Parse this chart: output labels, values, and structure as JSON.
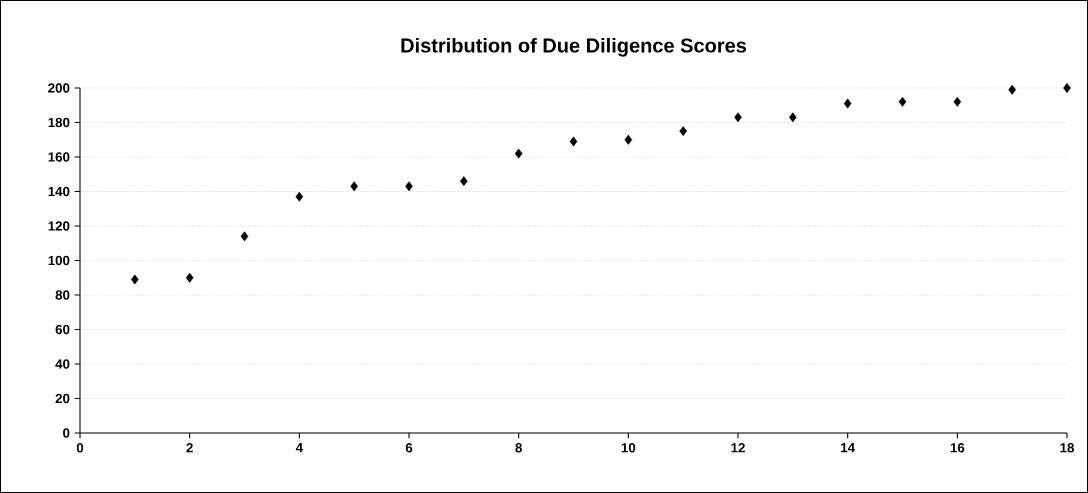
{
  "chart_data": {
    "type": "scatter",
    "title": "Distribution of Due Diligence Scores",
    "x": [
      1,
      2,
      3,
      4,
      5,
      6,
      7,
      8,
      9,
      10,
      11,
      12,
      13,
      14,
      15,
      16,
      17,
      18
    ],
    "values": [
      89,
      90,
      114,
      137,
      143,
      143,
      146,
      162,
      169,
      170,
      175,
      183,
      183,
      191,
      192,
      192,
      199,
      200
    ],
    "color": "#000000",
    "marker": "diamond",
    "xlim": [
      0,
      18
    ],
    "xticks": [
      0,
      2,
      4,
      6,
      8,
      10,
      12,
      14,
      16,
      18
    ],
    "ylim": [
      0,
      200
    ],
    "yticks": [
      0,
      20,
      40,
      60,
      80,
      100,
      120,
      140,
      160,
      180,
      200
    ],
    "grid": "y"
  }
}
